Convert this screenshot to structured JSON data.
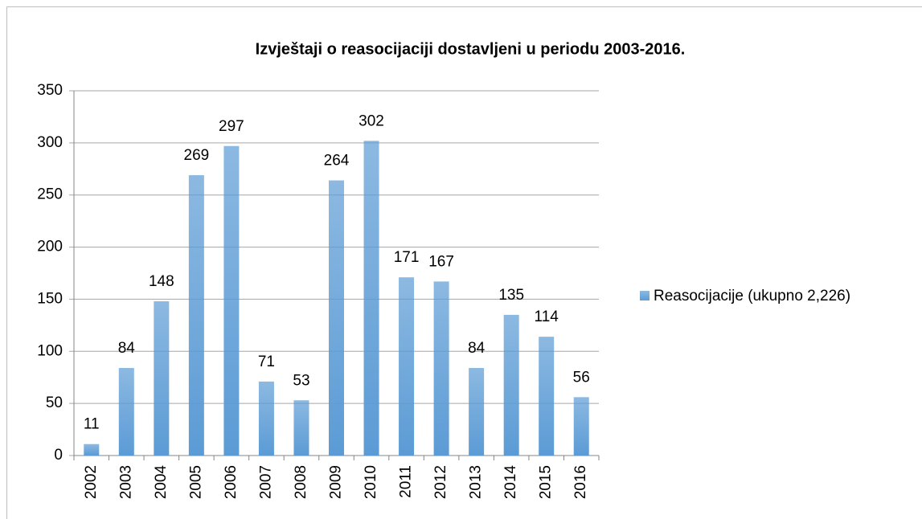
{
  "chart_data": {
    "type": "bar",
    "title": "Izvještaji o reasocijaciji dostavljeni u periodu 2003-2016.",
    "categories": [
      "2002",
      "2003",
      "2004",
      "2005",
      "2006",
      "2007",
      "2008",
      "2009",
      "2010",
      "2011",
      "2012",
      "2013",
      "2014",
      "2015",
      "2016"
    ],
    "series": [
      {
        "name": "Reasocijacije (ukupno 2,226)",
        "color": "#5b9bd5",
        "values": [
          11,
          84,
          148,
          269,
          297,
          71,
          53,
          264,
          302,
          171,
          167,
          84,
          135,
          114,
          56
        ]
      }
    ],
    "ylim": [
      0,
      350
    ],
    "yticks": [
      0,
      50,
      100,
      150,
      200,
      250,
      300,
      350
    ],
    "grid": true,
    "legend": "right"
  }
}
